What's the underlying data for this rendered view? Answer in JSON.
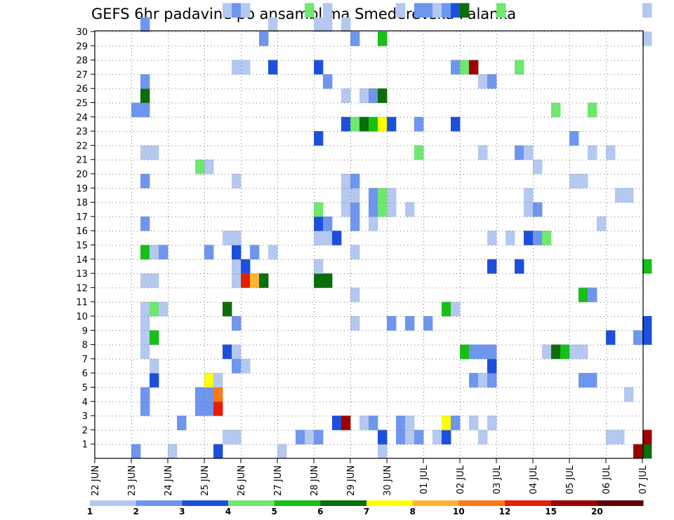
{
  "chart_data": {
    "type": "heatmap",
    "title": "GEFS 6hr padavine po ansamblima Smederevska Palanka",
    "x_tick_labels": [
      "22 JUN",
      "23 JUN",
      "24 JUN",
      "25 JUN",
      "26 JUN",
      "27 JUN",
      "28 JUN",
      "29 JUN",
      "30 JUN",
      "01 JUL",
      "02 JUL",
      "03 JUL",
      "04 JUL",
      "05 JUL",
      "06 JUL",
      "07 JUL"
    ],
    "y_tick_labels": [
      "1",
      "2",
      "3",
      "4",
      "5",
      "6",
      "7",
      "8",
      "9",
      "10",
      "11",
      "12",
      "13",
      "14",
      "15",
      "16",
      "17",
      "18",
      "19",
      "20",
      "21",
      "22",
      "23",
      "24",
      "25",
      "26",
      "27",
      "28",
      "29",
      "30"
    ],
    "y_range": [
      0,
      30
    ],
    "x_range_steps": [
      0,
      60
    ],
    "step_hours": 6,
    "grid": true,
    "colorbar": {
      "labels": [
        "1",
        "2",
        "3",
        "4",
        "5",
        "6",
        "7",
        "8",
        "10",
        "12",
        "15",
        "20"
      ],
      "colors": [
        "#b4c8f0",
        "#6e96ee",
        "#1e4fdc",
        "#6ee86e",
        "#16c016",
        "#0a6e0a",
        "#ffff00",
        "#ffb432",
        "#ff7814",
        "#e61e00",
        "#9c0000",
        "#5c0000"
      ]
    },
    "cells_legend": "each cell: [member (row), 6h step index from 22 JUN 00Z, precipitation class 0-11]",
    "cells": [
      [
        0,
        4,
        1
      ],
      [
        0,
        8,
        0
      ],
      [
        0,
        13,
        2
      ],
      [
        0,
        20,
        0
      ],
      [
        0,
        31,
        0
      ],
      [
        0,
        59,
        10
      ],
      [
        0,
        60,
        5
      ],
      [
        1,
        14,
        0
      ],
      [
        1,
        15,
        0
      ],
      [
        1,
        22,
        1
      ],
      [
        1,
        23,
        0
      ],
      [
        1,
        24,
        1
      ],
      [
        1,
        31,
        2
      ],
      [
        1,
        33,
        1
      ],
      [
        1,
        34,
        0
      ],
      [
        1,
        35,
        1
      ],
      [
        1,
        37,
        0
      ],
      [
        1,
        38,
        2
      ],
      [
        1,
        42,
        0
      ],
      [
        1,
        56,
        0
      ],
      [
        1,
        57,
        0
      ],
      [
        1,
        60,
        10
      ],
      [
        2,
        9,
        1
      ],
      [
        2,
        26,
        2
      ],
      [
        2,
        27,
        10
      ],
      [
        2,
        29,
        0
      ],
      [
        2,
        30,
        1
      ],
      [
        2,
        33,
        1
      ],
      [
        2,
        34,
        0
      ],
      [
        2,
        38,
        6
      ],
      [
        2,
        39,
        1
      ],
      [
        2,
        41,
        0
      ],
      [
        2,
        43,
        0
      ],
      [
        3,
        5,
        1
      ],
      [
        3,
        11,
        1
      ],
      [
        3,
        12,
        1
      ],
      [
        3,
        13,
        9
      ],
      [
        4,
        5,
        1
      ],
      [
        4,
        11,
        1
      ],
      [
        4,
        12,
        1
      ],
      [
        4,
        13,
        8
      ],
      [
        4,
        58,
        0
      ],
      [
        5,
        6,
        2
      ],
      [
        5,
        12,
        6
      ],
      [
        5,
        13,
        0
      ],
      [
        5,
        41,
        1
      ],
      [
        5,
        42,
        0
      ],
      [
        5,
        43,
        1
      ],
      [
        5,
        53,
        1
      ],
      [
        5,
        54,
        1
      ],
      [
        6,
        6,
        0
      ],
      [
        6,
        15,
        1
      ],
      [
        6,
        16,
        0
      ],
      [
        6,
        43,
        2
      ],
      [
        7,
        5,
        0
      ],
      [
        7,
        14,
        2
      ],
      [
        7,
        15,
        0
      ],
      [
        7,
        40,
        4
      ],
      [
        7,
        41,
        1
      ],
      [
        7,
        42,
        1
      ],
      [
        7,
        43,
        1
      ],
      [
        7,
        49,
        0
      ],
      [
        7,
        50,
        5
      ],
      [
        7,
        51,
        4
      ],
      [
        7,
        52,
        0
      ],
      [
        7,
        53,
        0
      ],
      [
        8,
        5,
        0
      ],
      [
        8,
        6,
        4
      ],
      [
        8,
        56,
        2
      ],
      [
        8,
        59,
        1
      ],
      [
        8,
        60,
        2
      ],
      [
        9,
        5,
        0
      ],
      [
        9,
        15,
        1
      ],
      [
        9,
        28,
        0
      ],
      [
        9,
        32,
        1
      ],
      [
        9,
        34,
        1
      ],
      [
        9,
        36,
        1
      ],
      [
        9,
        60,
        2
      ],
      [
        10,
        5,
        0
      ],
      [
        10,
        6,
        3
      ],
      [
        10,
        7,
        0
      ],
      [
        10,
        14,
        5
      ],
      [
        10,
        38,
        4
      ],
      [
        10,
        39,
        0
      ],
      [
        11,
        28,
        0
      ],
      [
        11,
        53,
        4
      ],
      [
        11,
        54,
        1
      ],
      [
        12,
        5,
        0
      ],
      [
        12,
        6,
        0
      ],
      [
        12,
        15,
        0
      ],
      [
        12,
        16,
        9
      ],
      [
        12,
        17,
        7
      ],
      [
        12,
        18,
        5
      ],
      [
        12,
        24,
        5
      ],
      [
        12,
        25,
        5
      ],
      [
        13,
        15,
        0
      ],
      [
        13,
        16,
        2
      ],
      [
        13,
        24,
        0
      ],
      [
        13,
        43,
        2
      ],
      [
        13,
        46,
        2
      ],
      [
        13,
        60,
        4
      ],
      [
        14,
        5,
        4
      ],
      [
        14,
        6,
        0
      ],
      [
        14,
        7,
        1
      ],
      [
        14,
        12,
        1
      ],
      [
        14,
        15,
        2
      ],
      [
        14,
        17,
        1
      ],
      [
        14,
        19,
        0
      ],
      [
        14,
        28,
        0
      ],
      [
        15,
        14,
        0
      ],
      [
        15,
        15,
        0
      ],
      [
        15,
        24,
        0
      ],
      [
        15,
        25,
        0
      ],
      [
        15,
        26,
        2
      ],
      [
        15,
        43,
        0
      ],
      [
        15,
        45,
        0
      ],
      [
        15,
        47,
        2
      ],
      [
        15,
        48,
        1
      ],
      [
        15,
        49,
        3
      ],
      [
        16,
        5,
        1
      ],
      [
        16,
        24,
        2
      ],
      [
        16,
        25,
        1
      ],
      [
        16,
        28,
        1
      ],
      [
        16,
        30,
        0
      ],
      [
        16,
        55,
        0
      ],
      [
        17,
        24,
        3
      ],
      [
        17,
        27,
        0
      ],
      [
        17,
        28,
        1
      ],
      [
        17,
        30,
        1
      ],
      [
        17,
        31,
        3
      ],
      [
        17,
        32,
        0
      ],
      [
        17,
        34,
        0
      ],
      [
        17,
        47,
        0
      ],
      [
        17,
        48,
        1
      ],
      [
        18,
        27,
        0
      ],
      [
        18,
        28,
        0
      ],
      [
        18,
        30,
        1
      ],
      [
        18,
        31,
        3
      ],
      [
        18,
        32,
        0
      ],
      [
        18,
        47,
        0
      ],
      [
        18,
        57,
        0
      ],
      [
        18,
        58,
        0
      ],
      [
        19,
        5,
        1
      ],
      [
        19,
        15,
        0
      ],
      [
        19,
        27,
        0
      ],
      [
        19,
        28,
        1
      ],
      [
        19,
        52,
        0
      ],
      [
        19,
        53,
        0
      ],
      [
        20,
        11,
        3
      ],
      [
        20,
        12,
        0
      ],
      [
        20,
        48,
        0
      ],
      [
        21,
        5,
        0
      ],
      [
        21,
        6,
        0
      ],
      [
        21,
        35,
        3
      ],
      [
        21,
        42,
        0
      ],
      [
        21,
        46,
        1
      ],
      [
        21,
        47,
        0
      ],
      [
        21,
        54,
        0
      ],
      [
        21,
        56,
        0
      ],
      [
        22,
        24,
        2
      ],
      [
        22,
        52,
        1
      ],
      [
        23,
        27,
        2
      ],
      [
        23,
        28,
        3
      ],
      [
        23,
        29,
        5
      ],
      [
        23,
        30,
        4
      ],
      [
        23,
        31,
        6
      ],
      [
        23,
        32,
        2
      ],
      [
        23,
        35,
        1
      ],
      [
        23,
        39,
        2
      ],
      [
        24,
        4,
        1
      ],
      [
        24,
        5,
        1
      ],
      [
        24,
        50,
        3
      ],
      [
        24,
        54,
        3
      ],
      [
        25,
        5,
        5
      ],
      [
        25,
        27,
        0
      ],
      [
        25,
        29,
        0
      ],
      [
        25,
        30,
        1
      ],
      [
        25,
        31,
        5
      ],
      [
        26,
        5,
        1
      ],
      [
        26,
        25,
        1
      ],
      [
        26,
        42,
        0
      ],
      [
        26,
        43,
        1
      ],
      [
        27,
        15,
        0
      ],
      [
        27,
        16,
        0
      ],
      [
        27,
        19,
        2
      ],
      [
        27,
        24,
        2
      ],
      [
        27,
        39,
        1
      ],
      [
        27,
        40,
        3
      ],
      [
        27,
        41,
        10
      ],
      [
        27,
        46,
        3
      ],
      [
        29,
        18,
        1
      ],
      [
        29,
        28,
        1
      ],
      [
        29,
        31,
        4
      ],
      [
        29,
        60,
        0
      ],
      [
        30,
        5,
        1
      ],
      [
        30,
        19,
        0
      ],
      [
        30,
        24,
        0
      ],
      [
        30,
        25,
        0
      ],
      [
        30,
        27,
        0
      ],
      [
        31,
        14,
        0
      ],
      [
        31,
        15,
        1
      ],
      [
        31,
        16,
        0
      ],
      [
        31,
        23,
        3
      ],
      [
        31,
        25,
        0
      ],
      [
        31,
        33,
        0
      ],
      [
        31,
        35,
        1
      ],
      [
        31,
        36,
        1
      ],
      [
        31,
        37,
        0
      ],
      [
        31,
        38,
        1
      ],
      [
        31,
        39,
        2
      ],
      [
        31,
        40,
        5
      ],
      [
        31,
        44,
        3
      ],
      [
        31,
        60,
        0
      ]
    ]
  }
}
